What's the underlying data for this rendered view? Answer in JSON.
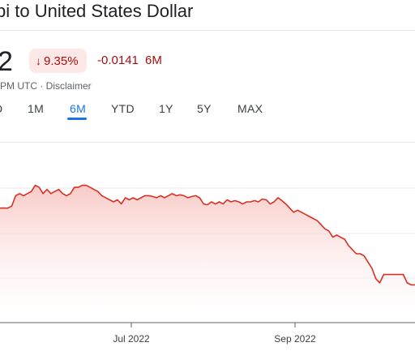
{
  "header": {
    "title": "bi to United States Dollar",
    "price": "2",
    "change_percent": "9.35%",
    "change_arrow": "↓",
    "change_value": "-0.0141",
    "change_period": "6M",
    "timestamp": "PM UTC · ",
    "disclaimer": "Disclaimer"
  },
  "tabs": [
    {
      "label": "D"
    },
    {
      "label": "1M"
    },
    {
      "label": "6M"
    },
    {
      "label": "YTD"
    },
    {
      "label": "1Y"
    },
    {
      "label": "5Y"
    },
    {
      "label": "MAX"
    }
  ],
  "active_tab": "6M",
  "colors": {
    "negative": "#d93025",
    "negative_text": "#a50e0e",
    "badge_bg": "#fce8e6",
    "accent": "#1a73e8"
  },
  "chart_data": {
    "type": "area",
    "x_tick_labels": [
      "Jul 2022",
      "Sep 2022"
    ],
    "series": [
      {
        "values": [
          0.149,
          0.149,
          0.149,
          0.1495,
          0.152,
          0.1525,
          0.152,
          0.1525,
          0.153,
          0.1545,
          0.154,
          0.1525,
          0.1535,
          0.1525,
          0.153,
          0.1535,
          0.1525,
          0.152,
          0.1525,
          0.154,
          0.154,
          0.1545,
          0.1545,
          0.154,
          0.1535,
          0.153,
          0.152,
          0.1515,
          0.151,
          0.1505,
          0.151,
          0.15,
          0.1515,
          0.151,
          0.1515,
          0.151,
          0.1515,
          0.152,
          0.152,
          0.1518,
          0.1515,
          0.152,
          0.1515,
          0.152,
          0.1525,
          0.152,
          0.1522,
          0.152,
          0.1515,
          0.1518,
          0.152,
          0.1515,
          0.15,
          0.1498,
          0.1505,
          0.15,
          0.1505,
          0.15,
          0.151,
          0.1505,
          0.1508,
          0.1505,
          0.15,
          0.1505,
          0.1505,
          0.1508,
          0.1505,
          0.1512,
          0.151,
          0.15,
          0.1505,
          0.1515,
          0.1508,
          0.15,
          0.149,
          0.148,
          0.1485,
          0.148,
          0.1475,
          0.147,
          0.1465,
          0.146,
          0.145,
          0.144,
          0.1435,
          0.142,
          0.1425,
          0.142,
          0.1415,
          0.14,
          0.139,
          0.138,
          0.138,
          0.1375,
          0.136,
          0.1345,
          0.132,
          0.131,
          0.133,
          0.133,
          0.133,
          0.133,
          0.133,
          0.133,
          0.131,
          0.1305,
          0.1305
        ]
      }
    ]
  }
}
